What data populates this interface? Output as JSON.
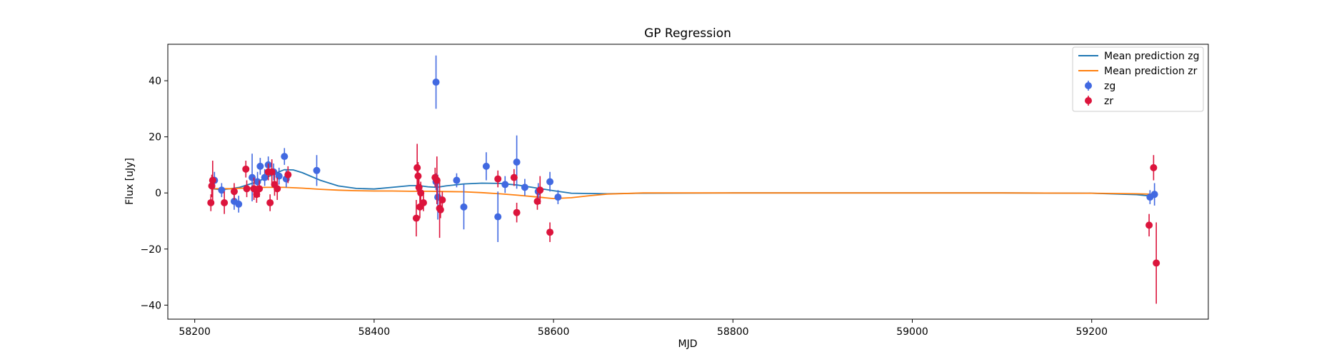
{
  "chart_data": {
    "type": "scatter",
    "title": "GP Regression",
    "xlabel": "MJD",
    "ylabel": "Flux [uJy]",
    "xlim": [
      58170,
      59330
    ],
    "ylim": [
      -45,
      53
    ],
    "xticks": [
      58200,
      58400,
      58600,
      58800,
      59000,
      59200
    ],
    "yticks": [
      -40,
      -20,
      0,
      20,
      40
    ],
    "grid": false,
    "legend_position": "top-right",
    "legend": [
      "Mean prediction zg",
      "Mean prediction zr",
      "zg",
      "zr"
    ],
    "colors": {
      "zg_line": "#1f77b4",
      "zr_line": "#ff7f0e",
      "zg_points": "#4169e1",
      "zr_points": "#dc143c"
    },
    "series": [
      {
        "name": "Mean prediction zg",
        "kind": "line",
        "color": "#1f77b4",
        "x": [
          58218,
          58230,
          58240,
          58250,
          58260,
          58270,
          58280,
          58290,
          58300,
          58310,
          58320,
          58340,
          58360,
          58380,
          58400,
          58420,
          58440,
          58450,
          58460,
          58470,
          58480,
          58500,
          58520,
          58540,
          58560,
          58580,
          58600,
          58620,
          58660,
          58700,
          58800,
          58900,
          59000,
          59100,
          59200,
          59250,
          59272
        ],
        "y": [
          1.5,
          1.2,
          1.5,
          2.0,
          3.0,
          4.0,
          5.5,
          7.0,
          8.3,
          8.2,
          7.2,
          4.5,
          2.5,
          1.6,
          1.4,
          2.0,
          2.6,
          2.6,
          2.2,
          2.0,
          2.5,
          3.2,
          3.5,
          3.4,
          2.8,
          1.8,
          0.8,
          -0.1,
          -0.3,
          -0.1,
          0,
          0,
          0,
          0,
          -0.1,
          -0.6,
          -1.3
        ]
      },
      {
        "name": "Mean prediction zr",
        "kind": "line",
        "color": "#ff7f0e",
        "x": [
          58218,
          58240,
          58260,
          58280,
          58300,
          58320,
          58340,
          58360,
          58380,
          58400,
          58420,
          58440,
          58460,
          58480,
          58500,
          58520,
          58540,
          58560,
          58580,
          58600,
          58620,
          58640,
          58660,
          58700,
          58800,
          58900,
          59000,
          59100,
          59200,
          59250,
          59272
        ],
        "y": [
          1.5,
          1.5,
          1.8,
          2.0,
          2.0,
          1.7,
          1.3,
          1.0,
          0.8,
          0.7,
          0.7,
          0.6,
          0.6,
          0.5,
          0.4,
          0.1,
          -0.3,
          -0.8,
          -1.4,
          -2.0,
          -1.7,
          -1.0,
          -0.4,
          0,
          0,
          0,
          0,
          0,
          -0.1,
          -0.3,
          -0.5
        ]
      },
      {
        "name": "zg",
        "kind": "errorbar",
        "color": "#4169e1",
        "points": [
          {
            "x": 58222,
            "y": 4.5,
            "err": 3
          },
          {
            "x": 58230,
            "y": 1.0,
            "err": 2.5
          },
          {
            "x": 58244,
            "y": -3.0,
            "err": 3
          },
          {
            "x": 58249,
            "y": -4.0,
            "err": 3
          },
          {
            "x": 58264,
            "y": 5.5,
            "err": 8.5
          },
          {
            "x": 58270,
            "y": 4.0,
            "err": 3.5
          },
          {
            "x": 58273,
            "y": 9.5,
            "err": 3
          },
          {
            "x": 58278,
            "y": 5.5,
            "err": 3
          },
          {
            "x": 58282,
            "y": 10.0,
            "err": 3
          },
          {
            "x": 58288,
            "y": 7.5,
            "err": 3
          },
          {
            "x": 58294,
            "y": 6.0,
            "err": 3
          },
          {
            "x": 58300,
            "y": 13.0,
            "err": 3
          },
          {
            "x": 58302,
            "y": 5.0,
            "err": 3
          },
          {
            "x": 58336,
            "y": 8.0,
            "err": 5.5
          },
          {
            "x": 58469,
            "y": 39.5,
            "err": 9.5
          },
          {
            "x": 58469,
            "y": 4.0,
            "err": 3
          },
          {
            "x": 58471,
            "y": -1.5,
            "err": 8
          },
          {
            "x": 58492,
            "y": 4.5,
            "err": 2.5
          },
          {
            "x": 58500,
            "y": -5.0,
            "err": 8
          },
          {
            "x": 58525,
            "y": 9.5,
            "err": 5
          },
          {
            "x": 58538,
            "y": -8.5,
            "err": 9
          },
          {
            "x": 58546,
            "y": 3.0,
            "err": 3
          },
          {
            "x": 58559,
            "y": 11.0,
            "err": 9.5
          },
          {
            "x": 58568,
            "y": 2.0,
            "err": 3
          },
          {
            "x": 58583,
            "y": 0.5,
            "err": 3
          },
          {
            "x": 58596,
            "y": 4.0,
            "err": 3.5
          },
          {
            "x": 58605,
            "y": -1.5,
            "err": 2.5
          },
          {
            "x": 59265,
            "y": -1.5,
            "err": 2.5
          },
          {
            "x": 59270,
            "y": -0.5,
            "err": 4
          }
        ]
      },
      {
        "name": "zr",
        "kind": "errorbar",
        "color": "#dc143c",
        "points": [
          {
            "x": 58218,
            "y": -3.5,
            "err": 3
          },
          {
            "x": 58219,
            "y": 2.5,
            "err": 4
          },
          {
            "x": 58220,
            "y": 4.5,
            "err": 7
          },
          {
            "x": 58233,
            "y": -3.5,
            "err": 4
          },
          {
            "x": 58244,
            "y": 0.5,
            "err": 3
          },
          {
            "x": 58257,
            "y": 8.5,
            "err": 3
          },
          {
            "x": 58258,
            "y": 1.5,
            "err": 3
          },
          {
            "x": 58266,
            "y": 1.5,
            "err": 4
          },
          {
            "x": 58269,
            "y": -0.5,
            "err": 3
          },
          {
            "x": 58272,
            "y": 1.5,
            "err": 3
          },
          {
            "x": 58282,
            "y": 7.5,
            "err": 3
          },
          {
            "x": 58284,
            "y": -3.5,
            "err": 3
          },
          {
            "x": 58286,
            "y": 7.5,
            "err": 4.5
          },
          {
            "x": 58289,
            "y": 3.0,
            "err": 4
          },
          {
            "x": 58292,
            "y": 1.5,
            "err": 4
          },
          {
            "x": 58304,
            "y": 6.5,
            "err": 3
          },
          {
            "x": 58447,
            "y": -9.0,
            "err": 6.5
          },
          {
            "x": 58448,
            "y": 9.0,
            "err": 8.5
          },
          {
            "x": 58449,
            "y": 6.0,
            "err": 5
          },
          {
            "x": 58450,
            "y": 2.0,
            "err": 3
          },
          {
            "x": 58451,
            "y": -5.0,
            "err": 4
          },
          {
            "x": 58452,
            "y": 0.0,
            "err": 4
          },
          {
            "x": 58455,
            "y": -3.5,
            "err": 3
          },
          {
            "x": 58468,
            "y": 5.5,
            "err": 3.5
          },
          {
            "x": 58470,
            "y": 4.5,
            "err": 8.5
          },
          {
            "x": 58473,
            "y": -5.5,
            "err": 10.5
          },
          {
            "x": 58474,
            "y": -6.0,
            "err": 3
          },
          {
            "x": 58476,
            "y": -2.5,
            "err": 3
          },
          {
            "x": 58538,
            "y": 5.0,
            "err": 3
          },
          {
            "x": 58556,
            "y": 5.5,
            "err": 3
          },
          {
            "x": 58559,
            "y": -7.0,
            "err": 3.5
          },
          {
            "x": 58582,
            "y": -3.0,
            "err": 3
          },
          {
            "x": 58585,
            "y": 1.0,
            "err": 5
          },
          {
            "x": 58596,
            "y": -14.0,
            "err": 3.5
          },
          {
            "x": 59264,
            "y": -11.5,
            "err": 4
          },
          {
            "x": 59269,
            "y": 9.0,
            "err": 4.5
          },
          {
            "x": 59272,
            "y": -25.0,
            "err": 14.5
          }
        ]
      }
    ]
  }
}
